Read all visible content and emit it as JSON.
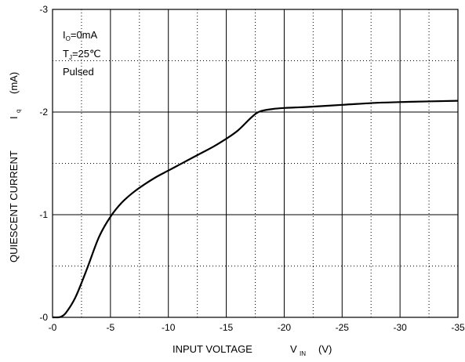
{
  "chart_data": {
    "type": "line",
    "title": "",
    "xlabel": {
      "main": "INPUT VOLTAGE",
      "symbol": "V",
      "subscript": "IN",
      "unit": "(V)"
    },
    "ylabel": {
      "main": "QUIESCENT CURRENT",
      "symbol": "I",
      "subscript": "q",
      "unit": "(mA)"
    },
    "xlim": [
      0,
      -35
    ],
    "ylim": [
      0,
      -3
    ],
    "x_ticks": [
      "-0",
      "-5",
      "-10",
      "-15",
      "-20",
      "-25",
      "-30",
      "-35"
    ],
    "y_ticks": [
      "-0",
      "-1",
      "-2",
      "-3"
    ],
    "x_tick_values": [
      0,
      -5,
      -10,
      -15,
      -20,
      -25,
      -30,
      -35
    ],
    "y_tick_values": [
      0,
      -1,
      -2,
      -3
    ],
    "grid": {
      "major": "solid",
      "minor": "dotted"
    },
    "annotations": [
      {
        "main": "I",
        "sub": "O",
        "rest": "=0mA"
      },
      {
        "main": "T",
        "sub": "J",
        "rest": "=25℃"
      },
      {
        "main": "Pulsed",
        "sub": "",
        "rest": ""
      }
    ],
    "series": [
      {
        "x": [
          0,
          -0.5,
          -0.8,
          -1.2,
          -2.0,
          -3.0,
          -4.0,
          -5.0,
          -6.0,
          -7.0,
          -8.0,
          -9.0,
          -10.0,
          -11.0,
          -12.0,
          -13.0,
          -14.0,
          -15.0,
          -16.0,
          -17.0,
          -17.5,
          -18.0,
          -19.0,
          -20.0,
          -22.0,
          -25.0,
          -28.0,
          -31.0,
          -35.0
        ],
        "y": [
          0,
          0,
          -0.01,
          -0.05,
          -0.2,
          -0.48,
          -0.78,
          -0.98,
          -1.12,
          -1.22,
          -1.3,
          -1.37,
          -1.43,
          -1.49,
          -1.55,
          -1.61,
          -1.67,
          -1.74,
          -1.82,
          -1.93,
          -1.98,
          -2.01,
          -2.03,
          -2.04,
          -2.05,
          -2.07,
          -2.09,
          -2.1,
          -2.11
        ]
      }
    ]
  }
}
